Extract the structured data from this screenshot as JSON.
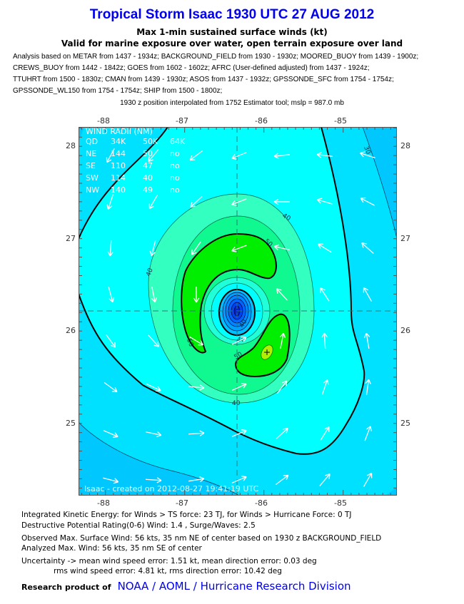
{
  "header": {
    "title": "Tropical Storm Isaac 1930 UTC 27 AUG 2012",
    "subtitle1": "Max 1-min sustained surface winds (kt)",
    "subtitle2": "Valid for marine exposure over water, open terrain exposure over land",
    "sources": [
      "Analysis based on METAR from 1437 - 1934z; BACKGROUND_FIELD from 1930 - 1930z; MOORED_BUOY from 1439 - 1900z;",
      "CREWS_BUOY from 1442 - 1842z; GOES from 1602 - 1602z; AFRC (User-defined adjusted) from 1437 - 1924z;",
      "TTUHRT from 1500 - 1830z; CMAN from 1439 - 1930z; ASOS from 1437 - 1932z; GPSSONDE_SFC from 1754 - 1754z;",
      "GPSSONDE_WL150 from 1754 - 1754z; SHIP from 1500 - 1800z;"
    ],
    "position_note": "1930 z position interpolated from 1752 Estimator tool; mslp = 987.0 mb"
  },
  "map": {
    "lon_labels": [
      "-88",
      "-87",
      "-86",
      "-85"
    ],
    "lat_labels": [
      "28",
      "27",
      "26",
      "25"
    ],
    "wind_radii": {
      "title": "WIND RADII (NM)",
      "header": [
        "QD",
        "34K",
        "50K",
        "64K"
      ],
      "rows": [
        [
          "NE",
          "144",
          "50",
          "no"
        ],
        [
          "SE",
          "110",
          "47",
          "no"
        ],
        [
          "SW",
          "114",
          "40",
          "no"
        ],
        [
          "NW",
          "140",
          "49",
          "no"
        ]
      ]
    },
    "contour_labels": {
      "c30": "30",
      "c40a": "40",
      "c40b": "40",
      "c40c": "40",
      "c40d": "40",
      "c50a": "50",
      "c50b": "50",
      "c50c": "50",
      "c40e": "40"
    },
    "watermark": "Isaac - created on 2012-08-27 19:41:19 UTC",
    "colors": {
      "outer": "#00c8ff",
      "ts_low": "#00e0ff",
      "ts": "#00ffff",
      "c40": "#33ffc0",
      "c45": "#10f890",
      "c50": "#00ee00",
      "c56": "#b0f000"
    }
  },
  "info": {
    "ike": "Integrated Kinetic Energy: for Winds > TS force: 23 TJ, for Winds > Hurricane Force: 0 TJ",
    "dpr": "Destructive Potential Rating(0-6)   Wind: 1.4 , Surge/Waves: 2.5",
    "observed": "Observed Max. Surface Wind: 56 kts, 35 nm NE of center based on 1930 z BACKGROUND_FIELD",
    "analyzed": "Analyzed Max. Wind: 56 kts, 35 nm  SE of center",
    "uncertainty1": "Uncertainty -> mean wind speed error: 1.51 kt, mean direction error: 0.03 deg",
    "uncertainty2": "rms wind speed error: 4.81 kt, rms direction error: 10.42 deg"
  },
  "footer": {
    "label": "Research product of",
    "link": "NOAA  /  AOML  /  Hurricane Research Division"
  }
}
